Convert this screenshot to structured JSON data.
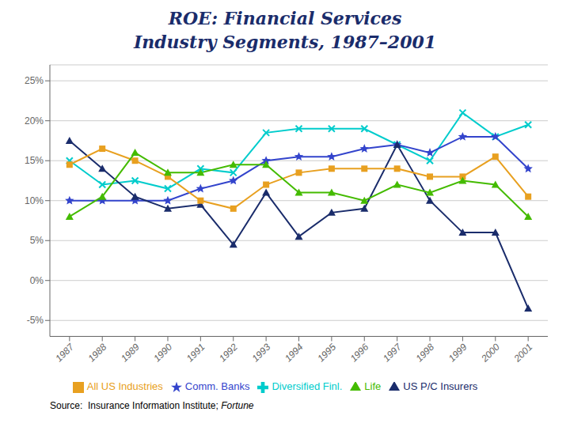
{
  "chart_data": {
    "type": "line",
    "title": "ROE: Financial Services",
    "subtitle": "Industry Segments, 1987–2001",
    "annotations": [
      "Source:  Insurance Information Institute; ",
      "Fortune"
    ],
    "x": [
      1987,
      1988,
      1989,
      1990,
      1991,
      1992,
      1993,
      1994,
      1995,
      1996,
      1997,
      1998,
      1999,
      2000,
      2001
    ],
    "series": [
      {
        "name": "Diversified Finl.",
        "color": "#00cccc",
        "marker": "x",
        "values": [
          15.0,
          12.0,
          12.5,
          11.5,
          14.0,
          13.5,
          18.5,
          19.0,
          19.0,
          19.0,
          17.0,
          15.0,
          21.0,
          18.0,
          19.5
        ]
      },
      {
        "name": "Comm. Banks",
        "color": "#3344cc",
        "marker": "star",
        "values": [
          10.0,
          10.0,
          10.0,
          10.0,
          11.5,
          12.5,
          15.0,
          15.5,
          15.5,
          16.5,
          17.0,
          16.0,
          18.0,
          18.0,
          14.0
        ]
      },
      {
        "name": "US P/C Insurers",
        "color": "#1a2c6b",
        "marker": "triangle",
        "values": [
          17.5,
          14.0,
          10.5,
          9.0,
          9.5,
          4.5,
          11.0,
          5.5,
          8.5,
          9.0,
          17.0,
          10.0,
          6.0,
          6.0,
          -3.5
        ]
      },
      {
        "name": "All US Industries",
        "color": "#e8a020",
        "marker": "square",
        "values": [
          14.5,
          16.5,
          15.0,
          13.0,
          10.0,
          9.0,
          12.0,
          13.5,
          14.0,
          14.0,
          14.0,
          13.0,
          13.0,
          15.5,
          10.5
        ]
      },
      {
        "name": "Life",
        "color": "#44bb00",
        "marker": "triangle",
        "values": [
          8.0,
          10.5,
          16.0,
          13.5,
          13.5,
          14.5,
          14.5,
          11.0,
          11.0,
          10.0,
          12.0,
          11.0,
          12.5,
          12.0,
          8.0
        ]
      }
    ],
    "xlim": [
      1986.4,
      2001.6
    ],
    "xticks": [
      1987,
      1988,
      1989,
      1990,
      1991,
      1992,
      1993,
      1994,
      1995,
      1996,
      1997,
      1998,
      1999,
      2000,
      2001
    ],
    "ylim": [
      -7,
      27
    ],
    "yticks": [
      {
        "value": -5,
        "label": "-5%"
      },
      {
        "value": 0,
        "label": "0%"
      },
      {
        "value": 5,
        "label": "5%"
      },
      {
        "value": 10,
        "label": "10%"
      },
      {
        "value": 15,
        "label": "15%"
      },
      {
        "value": 20,
        "label": "20%"
      },
      {
        "value": 25,
        "label": "25%"
      }
    ],
    "grid": true
  }
}
